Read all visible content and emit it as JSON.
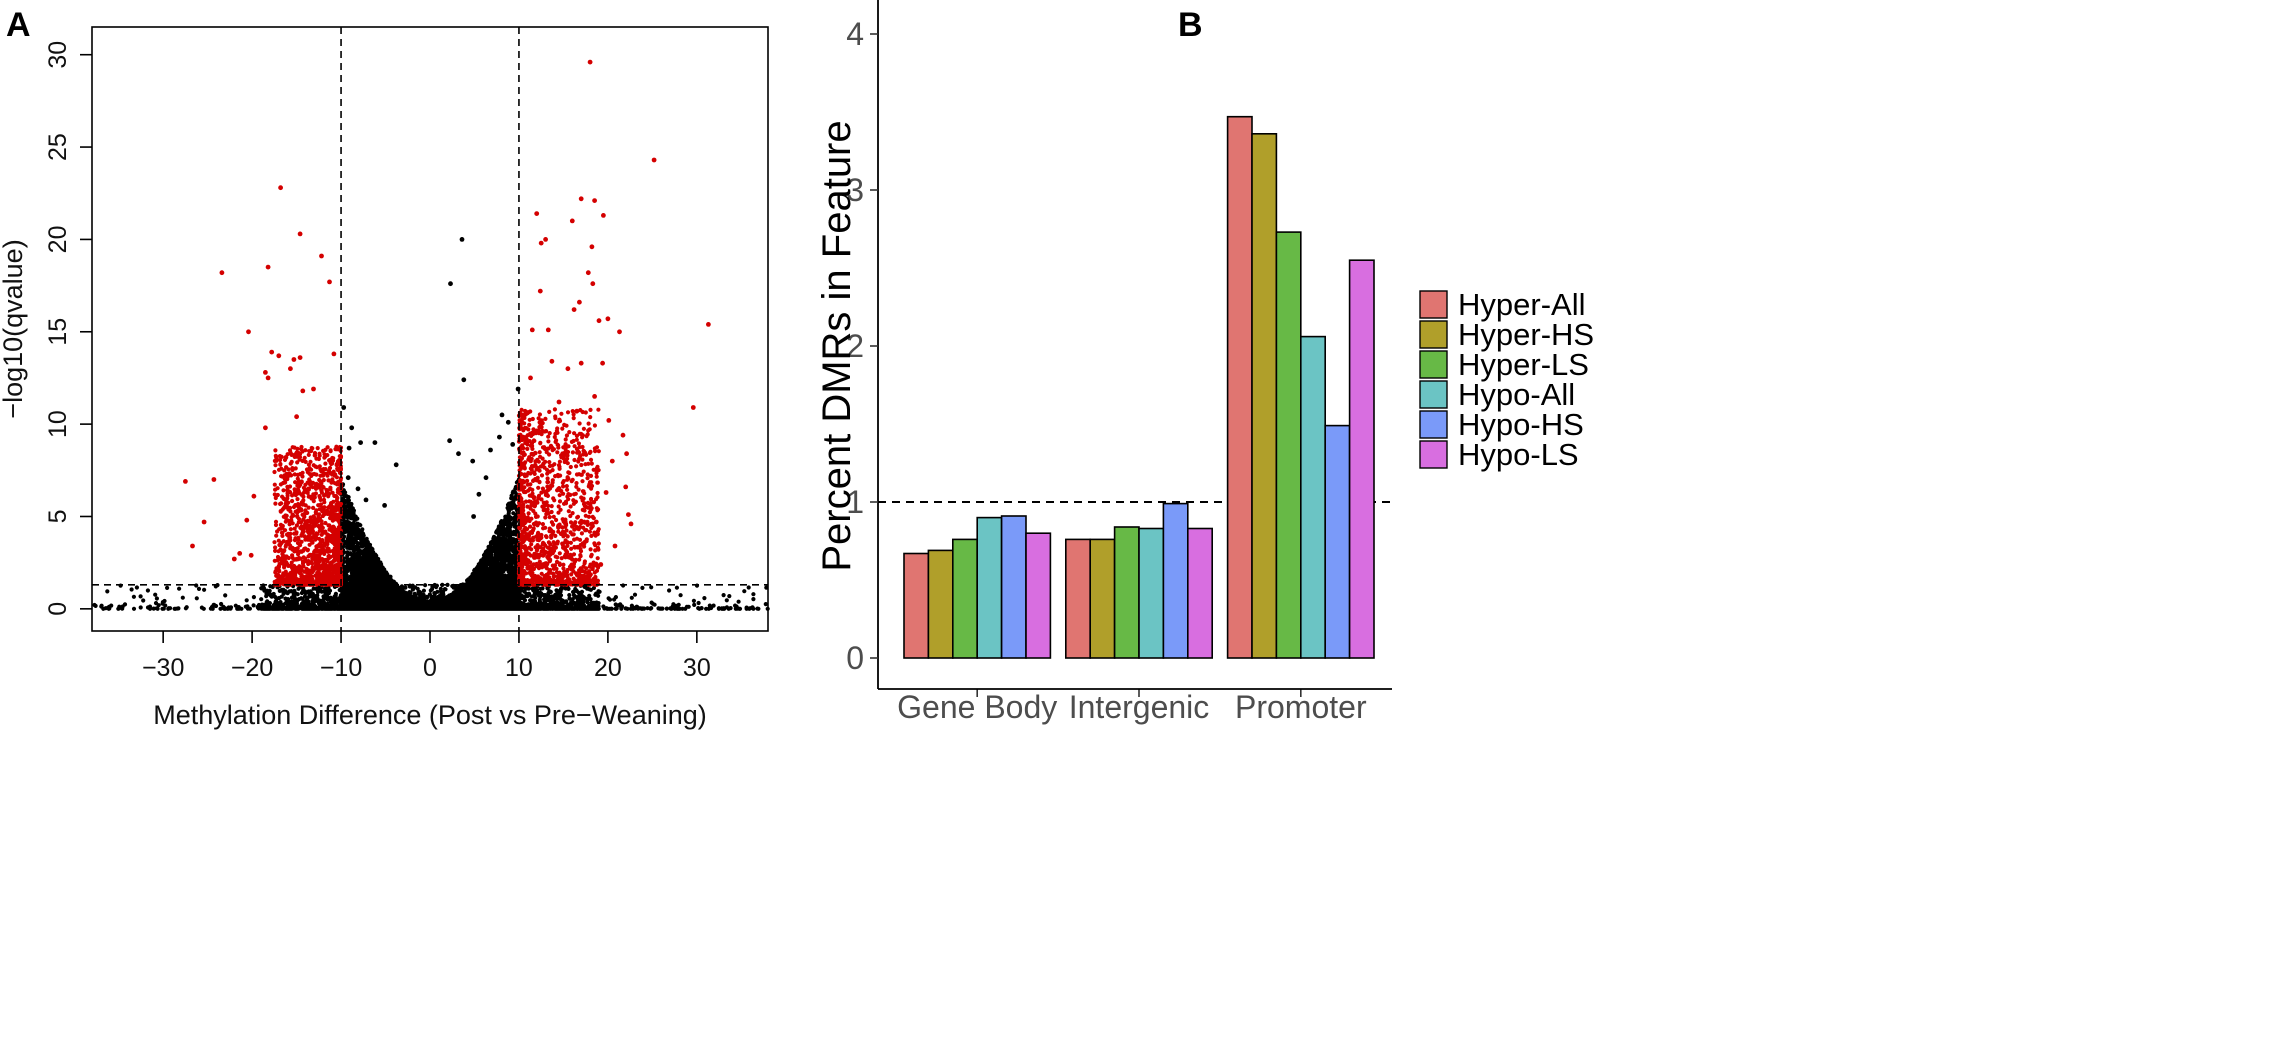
{
  "panels": {
    "a": "A",
    "b": "B"
  },
  "chart_data": [
    {
      "type": "scatter",
      "panel": "A",
      "title": "",
      "xlabel": "Methylation Difference (Post vs Pre−Weaning)",
      "ylabel": "−log10(qvalue)",
      "xlim": [
        -38,
        38
      ],
      "ylim": [
        -1.2,
        31.5
      ],
      "xticks": [
        -30,
        -20,
        -10,
        0,
        10,
        20,
        30
      ],
      "xtick_labels": [
        "−30",
        "−20",
        "−10",
        "0",
        "10",
        "20",
        "30"
      ],
      "yticks": [
        0,
        5,
        10,
        15,
        20,
        25,
        30
      ],
      "ytick_labels": [
        "0",
        "5",
        "10",
        "15",
        "20",
        "25",
        "30"
      ],
      "thresholds": {
        "x": [
          -10,
          10
        ],
        "y": 1.3
      },
      "colors": {
        "significant": "#d40000",
        "not_significant": "#000000"
      },
      "series": [
        {
          "name": "significant",
          "color": "#d40000",
          "points": [
            [
              18,
              29.6
            ],
            [
              25.2,
              24.3
            ],
            [
              -16.8,
              22.8
            ],
            [
              17,
              22.2
            ],
            [
              18.5,
              22.1
            ],
            [
              -14.6,
              20.3
            ],
            [
              12,
              21.4
            ],
            [
              19.5,
              21.3
            ],
            [
              16,
              21
            ],
            [
              -12.2,
              19.1
            ],
            [
              13,
              20
            ],
            [
              12.5,
              19.8
            ],
            [
              18.2,
              19.6
            ],
            [
              -23.4,
              18.2
            ],
            [
              -18.2,
              18.5
            ],
            [
              17.8,
              18.2
            ],
            [
              18.3,
              17.6
            ],
            [
              -11.3,
              17.7
            ],
            [
              12.4,
              17.2
            ],
            [
              16.8,
              16.6
            ],
            [
              16.2,
              16.2
            ],
            [
              19,
              15.6
            ],
            [
              20,
              15.7
            ],
            [
              -20.4,
              15
            ],
            [
              21.3,
              15
            ],
            [
              31.3,
              15.4
            ],
            [
              11.5,
              15.1
            ],
            [
              13.3,
              15.1
            ],
            [
              -17.8,
              13.9
            ],
            [
              -17,
              13.7
            ],
            [
              -15.3,
              13.5
            ],
            [
              -14.6,
              13.6
            ],
            [
              -10.8,
              13.8
            ],
            [
              -18.5,
              12.8
            ],
            [
              -18.2,
              12.5
            ],
            [
              -15.7,
              13
            ],
            [
              -14.3,
              11.8
            ],
            [
              -13.1,
              11.9
            ],
            [
              11.3,
              12.5
            ],
            [
              13.7,
              13.4
            ],
            [
              15.5,
              13
            ],
            [
              17,
              13.3
            ],
            [
              19.4,
              13.3
            ],
            [
              29.6,
              10.9
            ],
            [
              -27.5,
              6.9
            ],
            [
              -24.3,
              7
            ],
            [
              -25.4,
              4.7
            ],
            [
              -26.7,
              3.4
            ],
            [
              22.1,
              8.4
            ],
            [
              22,
              6.6
            ],
            [
              22.3,
              5.1
            ],
            [
              22.6,
              4.6
            ],
            [
              -21.4,
              3
            ],
            [
              -20.1,
              2.9
            ],
            [
              -19.8,
              6.1
            ],
            [
              -18.5,
              9.8
            ],
            [
              -16.2,
              8.2
            ],
            [
              -15,
              10.4
            ],
            [
              14.5,
              11.2
            ],
            [
              16.5,
              10.7
            ],
            [
              18.5,
              11.5
            ],
            [
              20.1,
              10.2
            ],
            [
              21.7,
              9.4
            ],
            [
              20.5,
              8
            ],
            [
              19.8,
              6.3
            ],
            [
              18.7,
              4.7
            ],
            [
              20.8,
              3.4
            ],
            [
              19.2,
              2.4
            ],
            [
              -20.6,
              4.8
            ],
            [
              -22,
              2.7
            ]
          ]
        },
        {
          "name": "not_significant",
          "color": "#000000",
          "points": [
            [
              3.6,
              20
            ],
            [
              2.3,
              17.6
            ],
            [
              3.8,
              12.4
            ],
            [
              -24.3,
              0.2
            ],
            [
              18.5,
              0.12
            ],
            [
              -9.7,
              10.9
            ],
            [
              9.9,
              11.9
            ],
            [
              -7.8,
              9
            ],
            [
              -6.2,
              9
            ],
            [
              -9.1,
              8.7
            ],
            [
              -3.8,
              7.8
            ],
            [
              2.2,
              9.1
            ],
            [
              3.2,
              8.4
            ],
            [
              6.8,
              8.6
            ],
            [
              8.8,
              10.1
            ],
            [
              4.8,
              8
            ],
            [
              7.8,
              9.3
            ],
            [
              8.1,
              10.5
            ],
            [
              -18.6,
              1
            ],
            [
              -13.2,
              0.8
            ],
            [
              14.8,
              1.1
            ],
            [
              16.7,
              0.6
            ],
            [
              17.4,
              1.2
            ],
            [
              -17.3,
              0.4
            ],
            [
              -9.2,
              7.1
            ],
            [
              -8.1,
              6.5
            ],
            [
              -7.2,
              5.9
            ],
            [
              6.3,
              7.1
            ],
            [
              5.5,
              6.2
            ],
            [
              -5.1,
              5.6
            ],
            [
              4.9,
              5
            ],
            [
              -8.8,
              9.8
            ],
            [
              9.3,
              8.9
            ]
          ]
        }
      ]
    },
    {
      "type": "bar",
      "panel": "B",
      "title": "",
      "xlabel": "",
      "ylabel": "Percent DMRs in Feature",
      "categories": [
        "Gene Body",
        "Intergenic",
        "Promoter"
      ],
      "ylim": [
        -0.1,
        4.15
      ],
      "yticks": [
        0,
        1,
        2,
        3,
        4
      ],
      "ytick_labels": [
        "0",
        "1",
        "2",
        "3",
        "4"
      ],
      "reference_line": 1,
      "legend_position": "right",
      "series": [
        {
          "name": "Hyper-All",
          "color": "#e07571",
          "values": [
            0.67,
            0.76,
            3.47
          ]
        },
        {
          "name": "Hyper-HS",
          "color": "#b09f2a",
          "values": [
            0.69,
            0.76,
            3.36
          ]
        },
        {
          "name": "Hyper-LS",
          "color": "#67b946",
          "values": [
            0.76,
            0.84,
            2.73
          ]
        },
        {
          "name": "Hypo-All",
          "color": "#6bc4c4",
          "values": [
            0.9,
            0.83,
            2.06
          ]
        },
        {
          "name": "Hypo-HS",
          "color": "#7a9af9",
          "values": [
            0.91,
            0.99,
            1.49
          ]
        },
        {
          "name": "Hypo-LS",
          "color": "#d86ee0",
          "values": [
            0.8,
            0.83,
            2.55
          ]
        }
      ]
    }
  ]
}
